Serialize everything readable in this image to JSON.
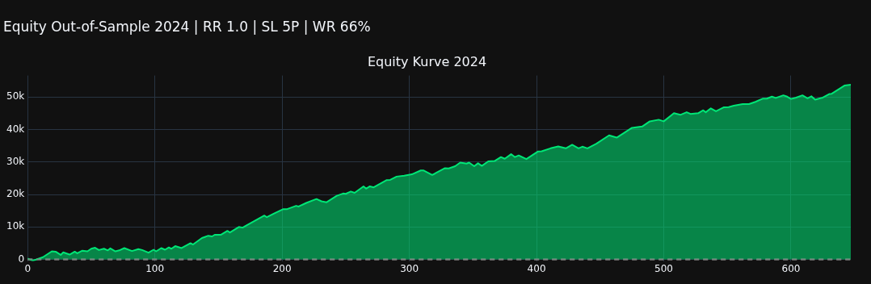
{
  "chart_data": {
    "type": "area",
    "title": "Equity Out-of-Sample 2024 | RR 1.0 | SL 5P | WR 66%",
    "subtitle": "Equity Kurve 2024",
    "x": [
      0,
      4,
      12,
      19,
      22,
      26,
      28,
      33,
      37,
      39,
      43,
      47,
      50,
      53,
      56,
      60,
      63,
      65,
      69,
      72,
      76,
      82,
      87,
      90,
      95,
      99,
      101,
      105,
      108,
      111,
      113,
      116,
      121,
      128,
      130,
      137,
      142,
      145,
      147,
      152,
      157,
      159,
      166,
      169,
      172,
      186,
      188,
      194,
      201,
      204,
      211,
      213,
      219,
      227,
      231,
      235,
      243,
      248,
      250,
      254,
      257,
      264,
      266,
      269,
      272,
      282,
      285,
      290,
      296,
      302,
      309,
      311,
      318,
      320,
      328,
      331,
      336,
      340,
      345,
      347,
      351,
      354,
      357,
      362,
      367,
      372,
      375,
      380,
      383,
      386,
      392,
      401,
      404,
      411,
      417,
      423,
      428,
      433,
      436,
      440,
      447,
      457,
      463,
      475,
      483,
      489,
      496,
      500,
      508,
      513,
      518,
      521,
      527,
      531,
      533,
      537,
      541,
      547,
      551,
      555,
      562,
      567,
      572,
      578,
      581,
      585,
      588,
      594,
      597,
      600,
      604,
      609,
      613,
      616,
      619,
      625,
      630,
      632,
      642,
      647
    ],
    "series": [
      {
        "color": "#00e676",
        "values": [
          300,
          -400,
          700,
          2500,
          2400,
          1400,
          2200,
          1500,
          2400,
          1900,
          2700,
          2500,
          3300,
          3600,
          2900,
          3300,
          2800,
          3400,
          2500,
          2800,
          3500,
          2600,
          3200,
          2900,
          2100,
          3000,
          2500,
          3500,
          3000,
          3700,
          3300,
          4100,
          3500,
          5000,
          4600,
          6600,
          7300,
          7100,
          7600,
          7600,
          8800,
          8300,
          10000,
          9800,
          10500,
          13500,
          13000,
          14200,
          15500,
          15500,
          16500,
          16300,
          17400,
          18600,
          17900,
          17600,
          19600,
          20300,
          20200,
          20900,
          20500,
          22500,
          21800,
          22500,
          22200,
          24400,
          24500,
          25500,
          25800,
          26200,
          27400,
          27400,
          26000,
          26400,
          28100,
          28000,
          28700,
          29800,
          29500,
          29800,
          28700,
          29600,
          28800,
          30200,
          30300,
          31500,
          31000,
          32400,
          31500,
          32000,
          30900,
          33200,
          33300,
          34200,
          34800,
          34200,
          35300,
          34200,
          34700,
          34200,
          35600,
          38200,
          37500,
          40500,
          40900,
          42500,
          43000,
          42500,
          45000,
          44500,
          45300,
          44800,
          45000,
          45900,
          45300,
          46500,
          45600,
          46800,
          46900,
          47300,
          47800,
          47800,
          48500,
          49500,
          49500,
          50100,
          49700,
          50500,
          50100,
          49400,
          49800,
          50500,
          49600,
          50200,
          49200,
          49800,
          50900,
          51000,
          53500,
          53800
        ]
      }
    ],
    "xlim": [
      0,
      647
    ],
    "xticks": [
      0,
      100,
      200,
      300,
      400,
      500,
      600
    ],
    "ylim": [
      -500,
      56600
    ],
    "yticks": [
      {
        "value": 0,
        "label": "0"
      },
      {
        "value": 10000,
        "label": "10k"
      },
      {
        "value": 20000,
        "label": "20k"
      },
      {
        "value": 30000,
        "label": "30k"
      },
      {
        "value": 40000,
        "label": "40k"
      },
      {
        "value": 50000,
        "label": "50k"
      }
    ],
    "ref_lines": [
      {
        "axis": "y",
        "value": 0,
        "color": "#808080",
        "line_style": "dashed"
      }
    ],
    "grid": true,
    "legend": false
  }
}
